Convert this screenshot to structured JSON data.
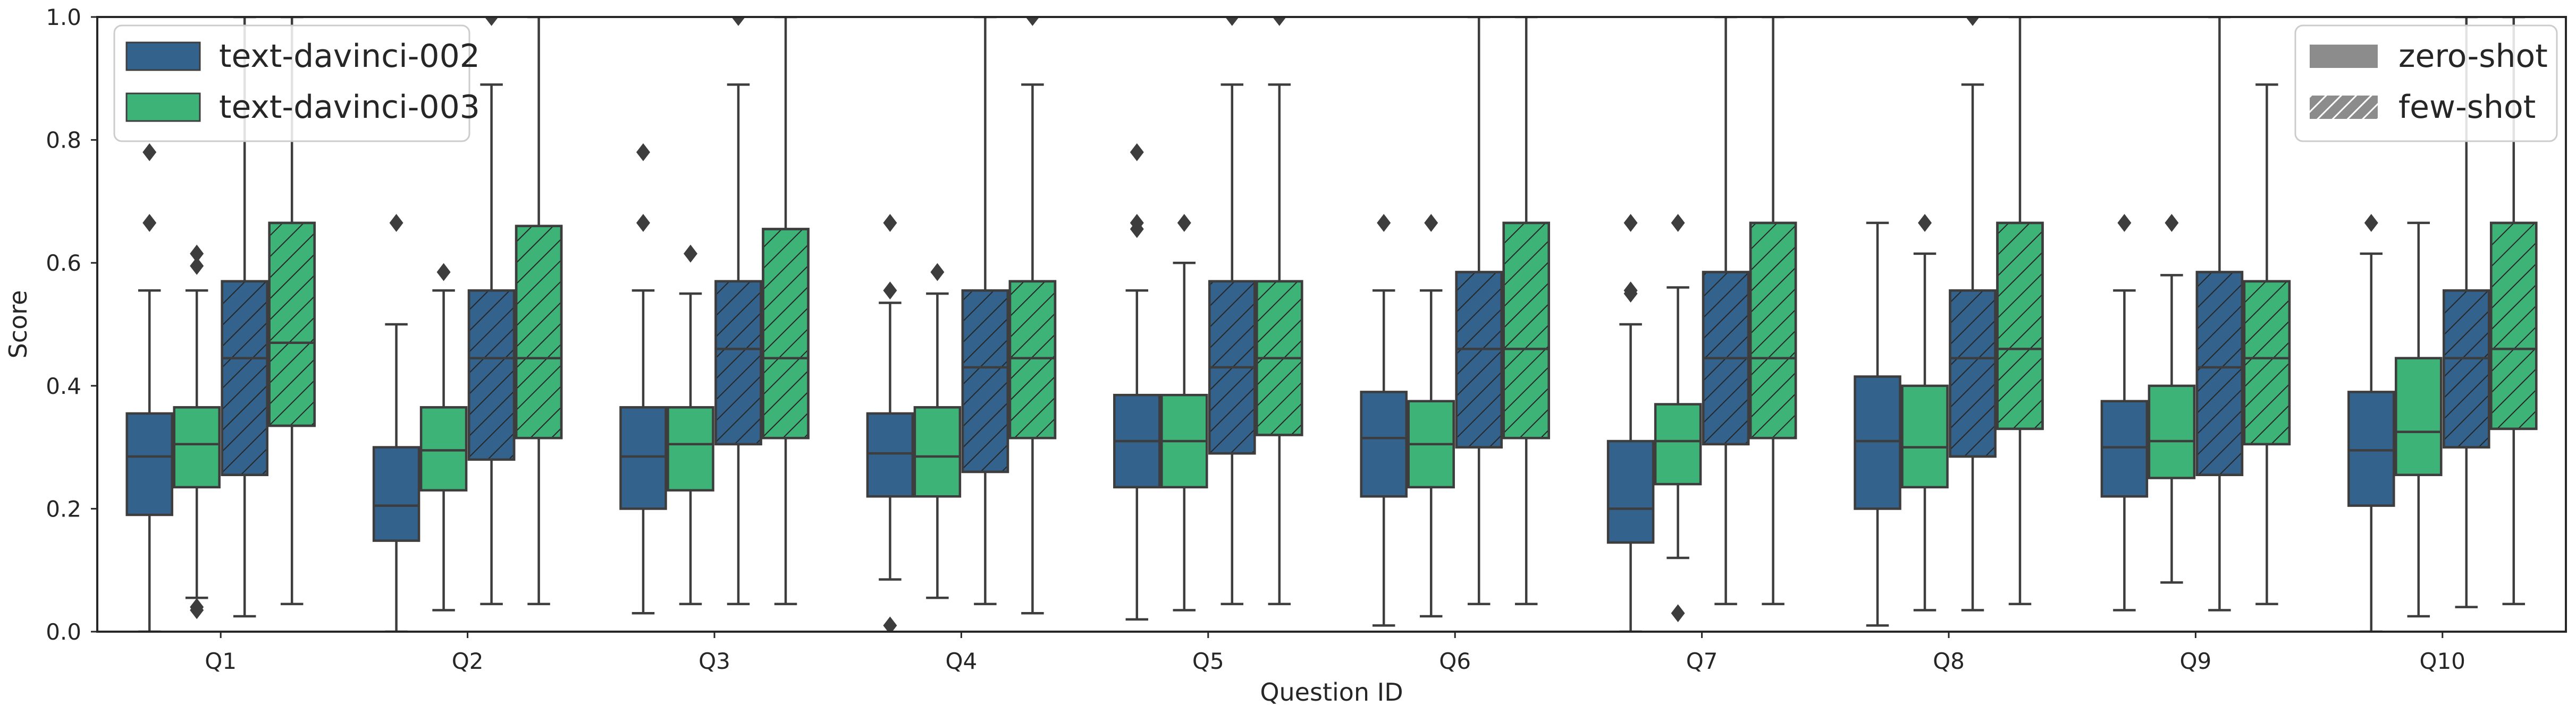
{
  "chart_data": {
    "type": "box",
    "xlabel": "Question ID",
    "ylabel": "Score",
    "ylim": [
      0,
      1
    ],
    "yticks": [
      "0.0",
      "0.2",
      "0.4",
      "0.6",
      "0.8",
      "1.0"
    ],
    "categories": [
      "Q1",
      "Q2",
      "Q3",
      "Q4",
      "Q5",
      "Q6",
      "Q7",
      "Q8",
      "Q9",
      "Q10"
    ],
    "grid": false,
    "legend_models": {
      "placement": "top-left",
      "entries": [
        {
          "label": "text-davinci-002",
          "color": "#33628d"
        },
        {
          "label": "text-davinci-003",
          "color": "#3eb377"
        }
      ]
    },
    "legend_modes": {
      "placement": "top-right",
      "entries": [
        {
          "label": "zero-shot",
          "hatch": false,
          "color": "#8c8c8c"
        },
        {
          "label": "few-shot",
          "hatch": true,
          "color": "#8c8c8c"
        }
      ]
    },
    "series": [
      {
        "model": "text-davinci-002",
        "mode": "zero-shot",
        "color": "#33628d",
        "hatched": false,
        "boxes": [
          {
            "q1": 0.19,
            "median": 0.285,
            "q3": 0.355,
            "whisker_low": 0.0,
            "whisker_high": 0.555,
            "outliers": [
              0.78,
              0.665
            ]
          },
          {
            "q1": 0.148,
            "median": 0.205,
            "q3": 0.3,
            "whisker_low": 0.0,
            "whisker_high": 0.5,
            "outliers": [
              0.665
            ]
          },
          {
            "q1": 0.2,
            "median": 0.285,
            "q3": 0.365,
            "whisker_low": 0.03,
            "whisker_high": 0.555,
            "outliers": [
              0.78,
              0.665
            ]
          },
          {
            "q1": 0.22,
            "median": 0.29,
            "q3": 0.355,
            "whisker_low": 0.085,
            "whisker_high": 0.535,
            "outliers": [
              0.665,
              0.555,
              0.01
            ]
          },
          {
            "q1": 0.235,
            "median": 0.31,
            "q3": 0.385,
            "whisker_low": 0.02,
            "whisker_high": 0.555,
            "outliers": [
              0.78,
              0.665,
              0.655
            ]
          },
          {
            "q1": 0.22,
            "median": 0.315,
            "q3": 0.39,
            "whisker_low": 0.01,
            "whisker_high": 0.555,
            "outliers": [
              0.665
            ]
          },
          {
            "q1": 0.145,
            "median": 0.2,
            "q3": 0.31,
            "whisker_low": 0.0,
            "whisker_high": 0.5,
            "outliers": [
              0.665,
              0.555,
              0.55
            ]
          },
          {
            "q1": 0.2,
            "median": 0.31,
            "q3": 0.415,
            "whisker_low": 0.01,
            "whisker_high": 0.665,
            "outliers": []
          },
          {
            "q1": 0.22,
            "median": 0.3,
            "q3": 0.375,
            "whisker_low": 0.035,
            "whisker_high": 0.555,
            "outliers": [
              0.665
            ]
          },
          {
            "q1": 0.205,
            "median": 0.295,
            "q3": 0.39,
            "whisker_low": 0.0,
            "whisker_high": 0.615,
            "outliers": [
              0.665
            ]
          }
        ]
      },
      {
        "model": "text-davinci-003",
        "mode": "zero-shot",
        "color": "#3eb377",
        "hatched": false,
        "boxes": [
          {
            "q1": 0.235,
            "median": 0.305,
            "q3": 0.365,
            "whisker_low": 0.055,
            "whisker_high": 0.555,
            "outliers": [
              0.615,
              0.595,
              0.04,
              0.035
            ]
          },
          {
            "q1": 0.23,
            "median": 0.295,
            "q3": 0.365,
            "whisker_low": 0.035,
            "whisker_high": 0.555,
            "outliers": [
              0.585
            ]
          },
          {
            "q1": 0.23,
            "median": 0.305,
            "q3": 0.365,
            "whisker_low": 0.045,
            "whisker_high": 0.55,
            "outliers": [
              0.615
            ]
          },
          {
            "q1": 0.22,
            "median": 0.285,
            "q3": 0.365,
            "whisker_low": 0.055,
            "whisker_high": 0.55,
            "outliers": [
              0.585
            ]
          },
          {
            "q1": 0.235,
            "median": 0.31,
            "q3": 0.385,
            "whisker_low": 0.035,
            "whisker_high": 0.6,
            "outliers": [
              0.665
            ]
          },
          {
            "q1": 0.235,
            "median": 0.305,
            "q3": 0.375,
            "whisker_low": 0.025,
            "whisker_high": 0.555,
            "outliers": [
              0.665
            ]
          },
          {
            "q1": 0.24,
            "median": 0.31,
            "q3": 0.37,
            "whisker_low": 0.12,
            "whisker_high": 0.56,
            "outliers": [
              0.665,
              0.03
            ]
          },
          {
            "q1": 0.235,
            "median": 0.3,
            "q3": 0.4,
            "whisker_low": 0.035,
            "whisker_high": 0.615,
            "outliers": [
              0.665
            ]
          },
          {
            "q1": 0.25,
            "median": 0.31,
            "q3": 0.4,
            "whisker_low": 0.08,
            "whisker_high": 0.58,
            "outliers": [
              0.665
            ]
          },
          {
            "q1": 0.255,
            "median": 0.325,
            "q3": 0.445,
            "whisker_low": 0.025,
            "whisker_high": 0.665,
            "outliers": []
          }
        ]
      },
      {
        "model": "text-davinci-002",
        "mode": "few-shot",
        "color": "#33628d",
        "hatched": true,
        "boxes": [
          {
            "q1": 0.255,
            "median": 0.445,
            "q3": 0.57,
            "whisker_low": 0.025,
            "whisker_high": 1.0,
            "outliers": []
          },
          {
            "q1": 0.28,
            "median": 0.445,
            "q3": 0.555,
            "whisker_low": 0.045,
            "whisker_high": 0.89,
            "outliers": [
              1.0
            ]
          },
          {
            "q1": 0.305,
            "median": 0.46,
            "q3": 0.57,
            "whisker_low": 0.045,
            "whisker_high": 0.89,
            "outliers": [
              1.0
            ]
          },
          {
            "q1": 0.26,
            "median": 0.43,
            "q3": 0.555,
            "whisker_low": 0.045,
            "whisker_high": 1.0,
            "outliers": []
          },
          {
            "q1": 0.29,
            "median": 0.43,
            "q3": 0.57,
            "whisker_low": 0.045,
            "whisker_high": 0.89,
            "outliers": [
              1.0
            ]
          },
          {
            "q1": 0.3,
            "median": 0.46,
            "q3": 0.585,
            "whisker_low": 0.045,
            "whisker_high": 1.0,
            "outliers": []
          },
          {
            "q1": 0.305,
            "median": 0.445,
            "q3": 0.585,
            "whisker_low": 0.045,
            "whisker_high": 1.0,
            "outliers": []
          },
          {
            "q1": 0.285,
            "median": 0.445,
            "q3": 0.555,
            "whisker_low": 0.035,
            "whisker_high": 0.89,
            "outliers": [
              1.0
            ]
          },
          {
            "q1": 0.255,
            "median": 0.43,
            "q3": 0.585,
            "whisker_low": 0.035,
            "whisker_high": 1.0,
            "outliers": []
          },
          {
            "q1": 0.3,
            "median": 0.445,
            "q3": 0.555,
            "whisker_low": 0.04,
            "whisker_high": 1.0,
            "outliers": []
          }
        ]
      },
      {
        "model": "text-davinci-003",
        "mode": "few-shot",
        "color": "#3eb377",
        "hatched": true,
        "boxes": [
          {
            "q1": 0.335,
            "median": 0.47,
            "q3": 0.665,
            "whisker_low": 0.045,
            "whisker_high": 1.0,
            "outliers": []
          },
          {
            "q1": 0.315,
            "median": 0.445,
            "q3": 0.66,
            "whisker_low": 0.045,
            "whisker_high": 1.0,
            "outliers": []
          },
          {
            "q1": 0.315,
            "median": 0.445,
            "q3": 0.655,
            "whisker_low": 0.045,
            "whisker_high": 1.0,
            "outliers": []
          },
          {
            "q1": 0.315,
            "median": 0.445,
            "q3": 0.57,
            "whisker_low": 0.03,
            "whisker_high": 0.89,
            "outliers": [
              1.0
            ]
          },
          {
            "q1": 0.32,
            "median": 0.445,
            "q3": 0.57,
            "whisker_low": 0.045,
            "whisker_high": 0.89,
            "outliers": [
              1.0
            ]
          },
          {
            "q1": 0.315,
            "median": 0.46,
            "q3": 0.665,
            "whisker_low": 0.045,
            "whisker_high": 1.0,
            "outliers": []
          },
          {
            "q1": 0.315,
            "median": 0.445,
            "q3": 0.665,
            "whisker_low": 0.045,
            "whisker_high": 1.0,
            "outliers": []
          },
          {
            "q1": 0.33,
            "median": 0.46,
            "q3": 0.665,
            "whisker_low": 0.045,
            "whisker_high": 1.0,
            "outliers": []
          },
          {
            "q1": 0.305,
            "median": 0.445,
            "q3": 0.57,
            "whisker_low": 0.045,
            "whisker_high": 0.89,
            "outliers": []
          },
          {
            "q1": 0.33,
            "median": 0.46,
            "q3": 0.665,
            "whisker_low": 0.045,
            "whisker_high": 1.0,
            "outliers": []
          }
        ]
      }
    ]
  }
}
